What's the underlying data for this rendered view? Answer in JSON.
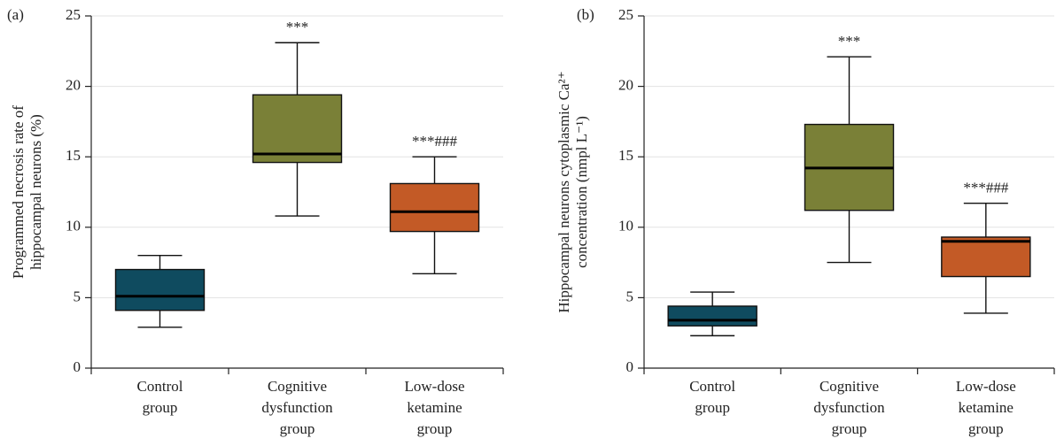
{
  "chart_data": [
    {
      "type": "box",
      "panel": "(a)",
      "ylabel": [
        "Programmed necrosis rate of",
        "hippocampal neurons (%)"
      ],
      "categories": [
        [
          "Control",
          "group"
        ],
        [
          "Cognitive",
          "dysfunction",
          "group"
        ],
        [
          "Low-dose",
          "ketamine",
          "group"
        ]
      ],
      "boxes": [
        {
          "min": 2.9,
          "q1": 4.1,
          "median": 5.1,
          "q3": 7.0,
          "max": 8.0,
          "color": "#0f4b5f"
        },
        {
          "min": 10.8,
          "q1": 14.6,
          "median": 15.2,
          "q3": 19.4,
          "max": 23.1,
          "color": "#7a8037"
        },
        {
          "min": 6.7,
          "q1": 9.7,
          "median": 11.1,
          "q3": 13.1,
          "max": 15.0,
          "color": "#c35a26"
        }
      ],
      "annotations": [
        null,
        "***",
        "***###"
      ],
      "ylim": [
        0,
        25
      ],
      "yticks": [
        0,
        5,
        10,
        15,
        20,
        25
      ],
      "grid": true
    },
    {
      "type": "box",
      "panel": "(b)",
      "ylabel": [
        "Hippocampal neurons cytoplasmic Ca²⁺",
        "concentration (nmpl L⁻¹)"
      ],
      "categories": [
        [
          "Control",
          "group"
        ],
        [
          "Cognitive",
          "dysfunction",
          "group"
        ],
        [
          "Low-dose",
          "ketamine",
          "group"
        ]
      ],
      "boxes": [
        {
          "min": 2.3,
          "q1": 3.0,
          "median": 3.4,
          "q3": 4.4,
          "max": 5.4,
          "color": "#0f4b5f"
        },
        {
          "min": 7.5,
          "q1": 11.2,
          "median": 14.2,
          "q3": 17.3,
          "max": 22.1,
          "color": "#7a8037"
        },
        {
          "min": 3.9,
          "q1": 6.5,
          "median": 9.0,
          "q3": 9.3,
          "max": 11.7,
          "color": "#c35a26"
        }
      ],
      "annotations": [
        null,
        "***",
        "***###"
      ],
      "ylim": [
        0,
        25
      ],
      "yticks": [
        0,
        5,
        10,
        15,
        20,
        25
      ],
      "grid": true
    }
  ]
}
